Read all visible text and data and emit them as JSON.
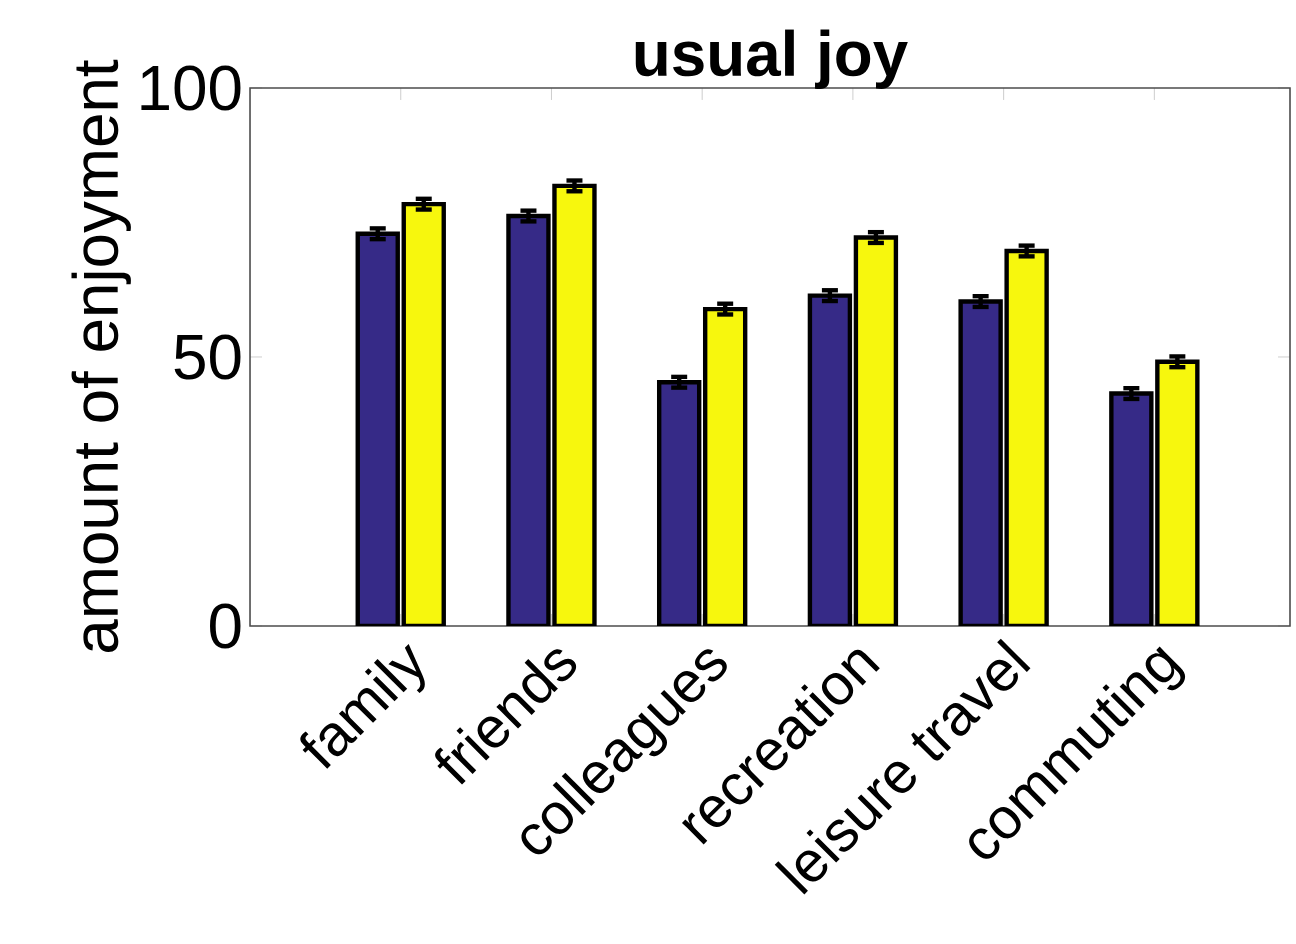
{
  "chart_data": {
    "type": "bar",
    "title": "usual joy",
    "ylabel": "amount of enjoyment",
    "categories": [
      "family",
      "friends",
      "colleagues",
      "recreation",
      "leisure travel",
      "commuting"
    ],
    "series": [
      {
        "color": "#362a87",
        "values": [
          72.9,
          76.2,
          45.3,
          61.4,
          60.3,
          43.2
        ],
        "errors": [
          1,
          1,
          1,
          1,
          1,
          1
        ]
      },
      {
        "color": "#f7f70d",
        "values": [
          78.4,
          81.8,
          58.9,
          72.2,
          69.7,
          49.1
        ],
        "errors": [
          1,
          1,
          1,
          1,
          1,
          1
        ]
      }
    ],
    "ylim": [
      0,
      100
    ],
    "yticks": [
      0,
      50,
      100
    ]
  }
}
